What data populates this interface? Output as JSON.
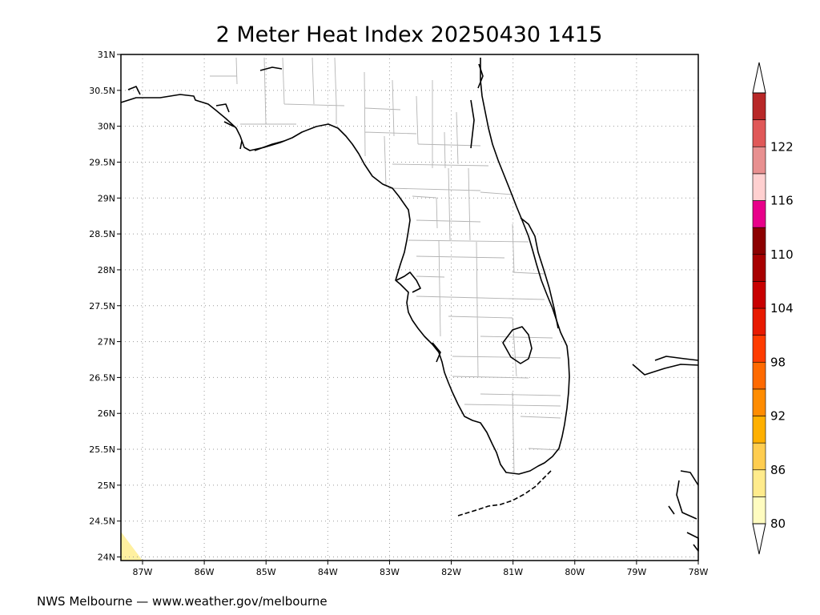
{
  "title": "2 Meter Heat Index 20250430 1415",
  "footer": "NWS Melbourne — www.weather.gov/melbourne",
  "map": {
    "lon_range": [
      -87.35,
      -78.0
    ],
    "lat_range": [
      23.95,
      31.0
    ],
    "x_ticks": [
      {
        "value": -87,
        "label": "87W"
      },
      {
        "value": -86,
        "label": "86W"
      },
      {
        "value": -85,
        "label": "85W"
      },
      {
        "value": -84,
        "label": "84W"
      },
      {
        "value": -83,
        "label": "83W"
      },
      {
        "value": -82,
        "label": "82W"
      },
      {
        "value": -81,
        "label": "81W"
      },
      {
        "value": -80,
        "label": "80W"
      },
      {
        "value": -79,
        "label": "79W"
      },
      {
        "value": -78,
        "label": "78W"
      }
    ],
    "y_ticks": [
      {
        "value": 31,
        "label": "31N"
      },
      {
        "value": 30.5,
        "label": "30.5N"
      },
      {
        "value": 30,
        "label": "30N"
      },
      {
        "value": 29.5,
        "label": "29.5N"
      },
      {
        "value": 29,
        "label": "29N"
      },
      {
        "value": 28.5,
        "label": "28.5N"
      },
      {
        "value": 28,
        "label": "28N"
      },
      {
        "value": 27.5,
        "label": "27.5N"
      },
      {
        "value": 27,
        "label": "27N"
      },
      {
        "value": 26.5,
        "label": "26.5N"
      },
      {
        "value": 26,
        "label": "26N"
      },
      {
        "value": 25.5,
        "label": "25.5N"
      },
      {
        "value": 25,
        "label": "25N"
      },
      {
        "value": 24.5,
        "label": "24.5N"
      },
      {
        "value": 24,
        "label": "24N"
      }
    ],
    "shaded_corner_color": "#fff0a0"
  },
  "colorbar": {
    "colors": [
      "#fffcc0",
      "#ffeb8c",
      "#ffcd50",
      "#ffb000",
      "#ff8c00",
      "#ff6a00",
      "#ff3c00",
      "#e81a00",
      "#c80000",
      "#a80000",
      "#8c0000",
      "#e8008a",
      "#ffd0d0",
      "#e89090",
      "#e05858",
      "#b82828"
    ],
    "labels": [
      {
        "index": 0,
        "text": "80"
      },
      {
        "index": 2,
        "text": "86"
      },
      {
        "index": 4,
        "text": "92"
      },
      {
        "index": 6,
        "text": "98"
      },
      {
        "index": 8,
        "text": "104"
      },
      {
        "index": 10,
        "text": "110"
      },
      {
        "index": 12,
        "text": "116"
      },
      {
        "index": 14,
        "text": "122"
      }
    ]
  }
}
